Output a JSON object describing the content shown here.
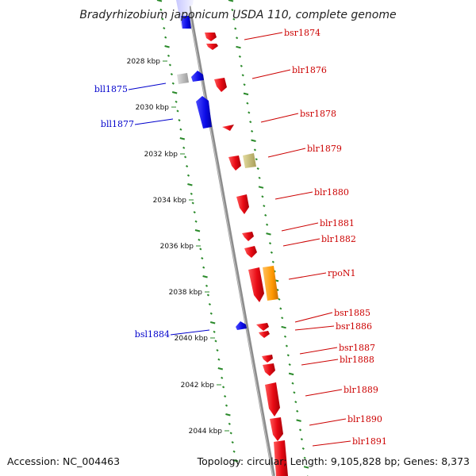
{
  "title": "Bradyrhizobium japonicum USDA 110, complete genome",
  "footer": {
    "accession": "Accession: NC_004463",
    "summary": "Topology: circular; Length: 9,105,828 bp; Genes: 8,373"
  },
  "colors": {
    "forward_gene": "#e8101a",
    "reverse_gene": "#1010e0",
    "forward_label": "#cc0000",
    "reverse_label": "#0000cc",
    "tick": "#2a8a2a",
    "backbone": "#8c8c8c",
    "rpoN": "#ff9900",
    "pseudo_tan": "#c8bf78",
    "pseudo_gray": "#b8b8b8"
  },
  "kbp_ticks": [
    "2028 kbp",
    "2030 kbp",
    "2032 kbp",
    "2034 kbp",
    "2036 kbp",
    "2038 kbp",
    "2040 kbp",
    "2042 kbp",
    "2044 kbp"
  ],
  "forward_labels": [
    "bsr1874",
    "blr1876",
    "bsr1878",
    "blr1879",
    "blr1880",
    "blr1881",
    "blr1882",
    "rpoN1",
    "bsr1885",
    "bsr1886",
    "bsr1887",
    "blr1888",
    "blr1889",
    "blr1890",
    "blr1891"
  ],
  "reverse_labels": [
    "bll1875",
    "bll1877",
    "bsl1884"
  ]
}
